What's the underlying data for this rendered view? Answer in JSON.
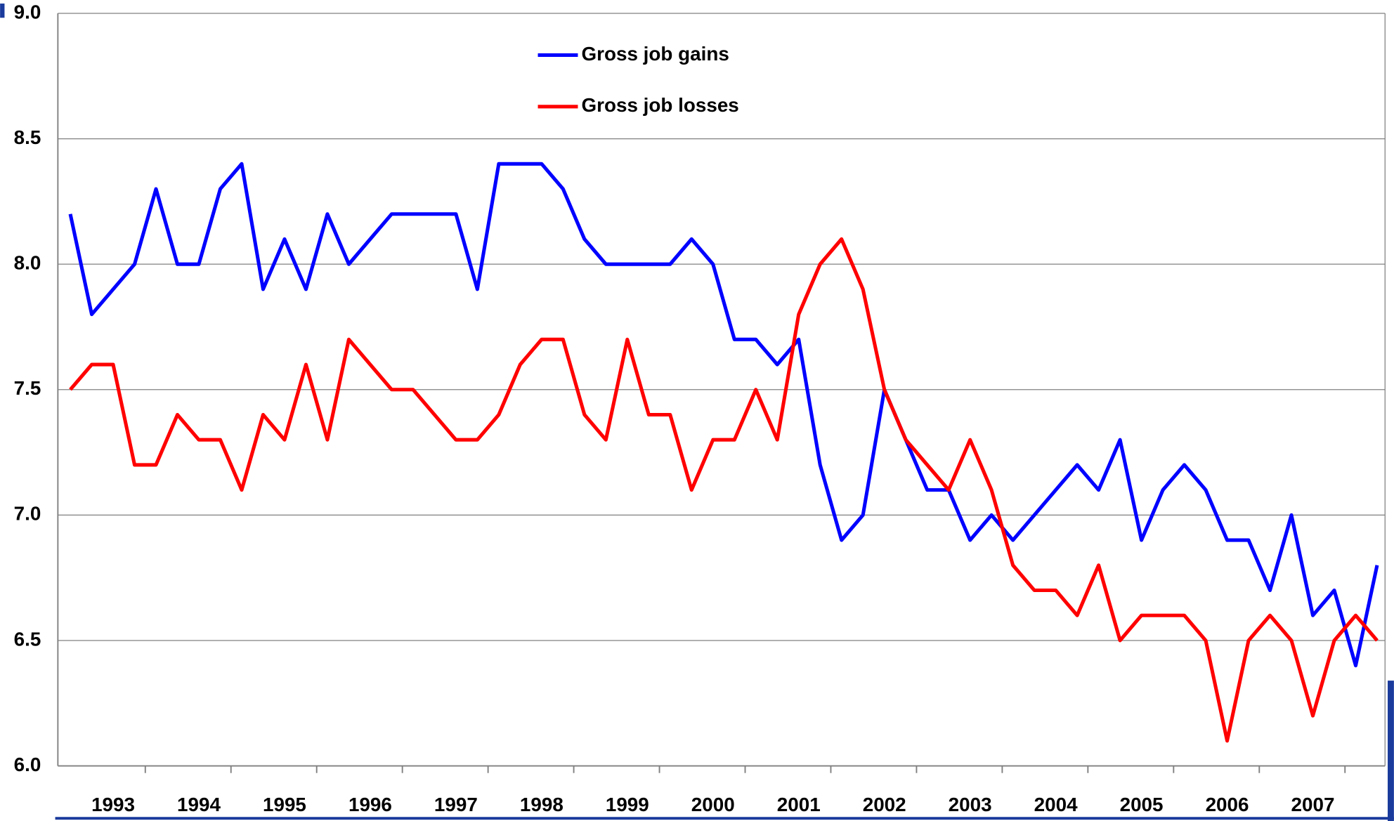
{
  "chart_data": {
    "type": "line",
    "categories": [
      null,
      null,
      "1993",
      null,
      null,
      null,
      "1994",
      null,
      null,
      null,
      "1995",
      null,
      null,
      null,
      "1996",
      null,
      null,
      null,
      "1997",
      null,
      null,
      null,
      "1998",
      null,
      null,
      null,
      "1999",
      null,
      null,
      null,
      "2000",
      null,
      null,
      null,
      "2001",
      null,
      null,
      null,
      "2002",
      null,
      null,
      null,
      "2003",
      null,
      null,
      null,
      "2004",
      null,
      null,
      null,
      "2005",
      null,
      null,
      null,
      "2006",
      null,
      null,
      null,
      "2007",
      null,
      null,
      null
    ],
    "series": [
      {
        "name": "Gross job gains",
        "color": "#0000ff",
        "values": [
          8.2,
          7.8,
          7.9,
          8.0,
          8.3,
          8.0,
          8.0,
          8.3,
          8.4,
          7.9,
          8.1,
          7.9,
          8.2,
          8.0,
          8.1,
          8.2,
          8.2,
          8.2,
          8.2,
          7.9,
          8.4,
          8.4,
          8.4,
          8.3,
          8.1,
          8.0,
          8.0,
          8.0,
          8.0,
          8.1,
          8.0,
          7.7,
          7.7,
          7.6,
          7.7,
          7.2,
          6.9,
          7.0,
          7.5,
          7.3,
          7.1,
          7.1,
          6.9,
          7.0,
          6.9,
          7.0,
          7.1,
          7.2,
          7.1,
          7.3,
          6.9,
          7.1,
          7.2,
          7.1,
          6.9,
          6.9,
          6.7,
          7.0,
          6.6,
          6.7,
          6.4,
          6.8
        ]
      },
      {
        "name": "Gross job losses",
        "color": "#ff0000",
        "values": [
          7.5,
          7.6,
          7.6,
          7.2,
          7.2,
          7.4,
          7.3,
          7.3,
          7.1,
          7.4,
          7.3,
          7.6,
          7.3,
          7.7,
          7.6,
          7.5,
          7.5,
          7.4,
          7.3,
          7.3,
          7.4,
          7.6,
          7.7,
          7.7,
          7.4,
          7.3,
          7.7,
          7.4,
          7.4,
          7.1,
          7.3,
          7.3,
          7.5,
          7.3,
          7.8,
          8.0,
          8.1,
          7.9,
          7.5,
          7.3,
          7.2,
          7.1,
          7.3,
          7.1,
          6.8,
          6.7,
          6.7,
          6.6,
          6.8,
          6.5,
          6.6,
          6.6,
          6.6,
          6.5,
          6.1,
          6.5,
          6.6,
          6.5,
          6.2,
          6.5,
          6.6,
          6.5
        ]
      }
    ],
    "ylim": [
      6,
      9
    ],
    "yticks": [
      {
        "value": 6,
        "label": "6.0"
      },
      {
        "value": 6.5,
        "label": "6.5"
      },
      {
        "value": 7,
        "label": "7.0"
      },
      {
        "value": 7.5,
        "label": "7.5"
      },
      {
        "value": 8,
        "label": "8.0"
      },
      {
        "value": 8.5,
        "label": "8.5"
      },
      {
        "value": 9,
        "label": "9.0"
      }
    ],
    "grid": true
  }
}
